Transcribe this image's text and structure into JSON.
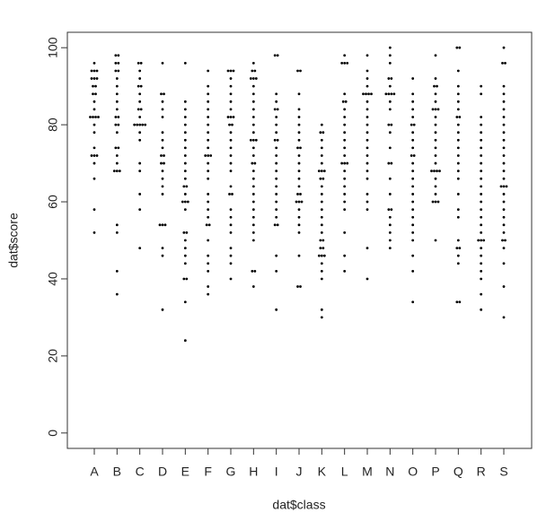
{
  "chart_data": {
    "type": "strip",
    "xlabel": "dat$class",
    "ylabel": "dat$score",
    "categories": [
      "A",
      "B",
      "C",
      "D",
      "E",
      "F",
      "G",
      "H",
      "I",
      "J",
      "K",
      "L",
      "M",
      "N",
      "O",
      "P",
      "Q",
      "R",
      "S"
    ],
    "values": [
      [
        96,
        94,
        94,
        94,
        92,
        92,
        92,
        90,
        90,
        88,
        88,
        86,
        84,
        82,
        82,
        82,
        82,
        80,
        78,
        74,
        72,
        72,
        72,
        70,
        66,
        58,
        52
      ],
      [
        98,
        98,
        96,
        96,
        94,
        94,
        92,
        90,
        88,
        86,
        84,
        82,
        82,
        80,
        80,
        78,
        74,
        74,
        72,
        70,
        68,
        68,
        68,
        54,
        52,
        42,
        36
      ],
      [
        96,
        96,
        94,
        92,
        90,
        90,
        88,
        86,
        84,
        84,
        82,
        80,
        80,
        80,
        80,
        80,
        78,
        76,
        70,
        68,
        62,
        58,
        48
      ],
      [
        96,
        88,
        88,
        86,
        84,
        82,
        78,
        76,
        74,
        72,
        72,
        70,
        70,
        68,
        66,
        64,
        62,
        54,
        54,
        54,
        48,
        46,
        32
      ],
      [
        96,
        86,
        84,
        82,
        80,
        78,
        76,
        74,
        72,
        70,
        68,
        66,
        64,
        64,
        62,
        60,
        60,
        60,
        58,
        52,
        52,
        50,
        48,
        46,
        44,
        40,
        40,
        34,
        24
      ],
      [
        94,
        90,
        88,
        86,
        84,
        82,
        80,
        78,
        76,
        74,
        72,
        72,
        72,
        70,
        68,
        66,
        62,
        60,
        58,
        56,
        54,
        54,
        50,
        46,
        44,
        42,
        38,
        36
      ],
      [
        94,
        94,
        94,
        92,
        90,
        88,
        86,
        84,
        82,
        82,
        82,
        80,
        80,
        78,
        76,
        74,
        72,
        70,
        68,
        64,
        62,
        62,
        58,
        56,
        54,
        52,
        48,
        46,
        44,
        40
      ],
      [
        96,
        94,
        94,
        92,
        92,
        92,
        90,
        88,
        86,
        84,
        82,
        80,
        78,
        76,
        76,
        76,
        74,
        72,
        70,
        70,
        68,
        66,
        64,
        62,
        60,
        58,
        56,
        54,
        52,
        50,
        42,
        42,
        38
      ],
      [
        98,
        98,
        88,
        86,
        84,
        84,
        82,
        80,
        78,
        76,
        76,
        74,
        72,
        70,
        68,
        66,
        64,
        62,
        60,
        58,
        56,
        54,
        54,
        46,
        42,
        32
      ],
      [
        94,
        94,
        88,
        84,
        82,
        80,
        78,
        76,
        74,
        74,
        72,
        70,
        68,
        66,
        64,
        62,
        62,
        60,
        60,
        60,
        58,
        56,
        54,
        52,
        46,
        38,
        38
      ],
      [
        80,
        78,
        78,
        76,
        74,
        72,
        70,
        68,
        68,
        68,
        66,
        66,
        64,
        62,
        60,
        58,
        56,
        54,
        52,
        50,
        50,
        48,
        48,
        46,
        46,
        46,
        44,
        42,
        40,
        32,
        30
      ],
      [
        98,
        96,
        96,
        96,
        88,
        86,
        86,
        84,
        82,
        80,
        78,
        76,
        74,
        72,
        70,
        70,
        70,
        68,
        66,
        64,
        62,
        60,
        58,
        52,
        46,
        42
      ],
      [
        98,
        94,
        92,
        90,
        88,
        88,
        88,
        88,
        86,
        84,
        82,
        80,
        78,
        76,
        74,
        72,
        70,
        68,
        66,
        62,
        60,
        58,
        48,
        40
      ],
      [
        100,
        98,
        96,
        92,
        92,
        90,
        88,
        88,
        88,
        88,
        86,
        84,
        80,
        80,
        78,
        74,
        70,
        70,
        66,
        62,
        58,
        58,
        56,
        54,
        52,
        50,
        48
      ],
      [
        92,
        88,
        86,
        84,
        82,
        80,
        80,
        78,
        76,
        74,
        72,
        72,
        70,
        68,
        66,
        64,
        62,
        60,
        58,
        56,
        54,
        52,
        50,
        46,
        42,
        34
      ],
      [
        98,
        92,
        90,
        90,
        88,
        86,
        84,
        84,
        84,
        82,
        80,
        78,
        76,
        74,
        72,
        70,
        68,
        68,
        68,
        68,
        66,
        64,
        62,
        60,
        60,
        60,
        50
      ],
      [
        100,
        100,
        94,
        90,
        88,
        86,
        84,
        82,
        82,
        80,
        78,
        76,
        74,
        72,
        70,
        68,
        66,
        62,
        58,
        56,
        50,
        48,
        48,
        46,
        44,
        34,
        34
      ],
      [
        90,
        88,
        82,
        80,
        78,
        76,
        74,
        72,
        70,
        68,
        66,
        64,
        62,
        60,
        58,
        56,
        54,
        52,
        50,
        50,
        50,
        48,
        46,
        44,
        42,
        40,
        36,
        32
      ],
      [
        100,
        96,
        96,
        90,
        88,
        86,
        84,
        82,
        80,
        78,
        76,
        74,
        72,
        70,
        68,
        66,
        64,
        64,
        64,
        62,
        60,
        58,
        56,
        54,
        52,
        50,
        50,
        48,
        44,
        38,
        30
      ]
    ],
    "color": "#000000",
    "ylim": [
      -4,
      104
    ],
    "yticks": [
      0,
      20,
      40,
      60,
      80,
      100
    ]
  }
}
